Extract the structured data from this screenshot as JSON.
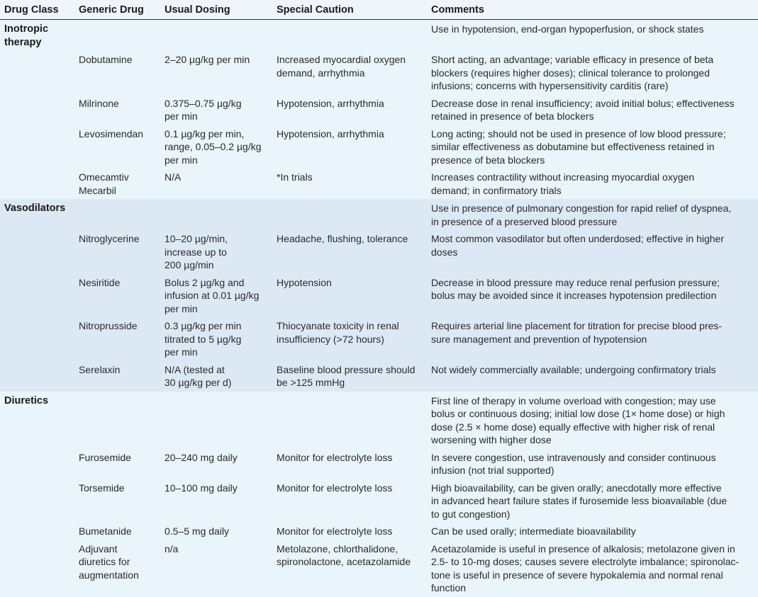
{
  "headers": [
    "Drug Class",
    "Generic Drug",
    "Usual Dosing",
    "Special Caution",
    "Comments"
  ],
  "sections": [
    {
      "class": "Inotropic\ntherapy",
      "comment": "Use in hypotension, end-organ hypoperfusion, or shock states",
      "rows": [
        [
          "Dobutamine",
          "2–20 µg/kg per min",
          "Increased myocardial oxygen\ndemand, arrhythmia",
          "Short acting, an advantage; variable efficacy in presence of beta\nblockers (requires higher doses); clinical tolerance to prolonged\ninfusions; concerns with hypersensitivity carditis (rare)"
        ],
        [
          "Milrinone",
          "0.375–0.75 µg/kg\nper min",
          "Hypotension, arrhythmia",
          "Decrease dose in renal insufficiency; avoid initial bolus; effectiveness\nretained in presence of beta blockers"
        ],
        [
          "Levosimendan",
          "0.1 µg/kg per min,\nrange, 0.05–0.2 µg/kg\nper min",
          "Hypotension, arrhythmia",
          "Long acting; should not be used in presence of low blood pressure;\nsimilar effectiveness as dobutamine but effectiveness retained in\npresence of beta blockers"
        ],
        [
          "Omecamtiv\nMecarbil",
          "N/A",
          "*In trials",
          "Increases contractility without increasing myocardial oxygen\ndemand; in confirmatory trials"
        ]
      ]
    },
    {
      "class": "Vasodilators",
      "comment": "Use in presence of pulmonary congestion for rapid relief of dyspnea,\nin presence of a preserved blood pressure",
      "rows": [
        [
          "Nitroglycerine",
          "10–20 µg/min,\nincrease up to\n200 µg/min",
          "Headache, flushing, tolerance",
          "Most common vasodilator but often underdosed; effective in higher\ndoses"
        ],
        [
          "Nesiritide",
          "Bolus 2 µg/kg and\ninfusion at 0.01 µg/kg\nper min",
          "Hypotension",
          "Decrease in blood pressure may reduce renal perfusion pressure;\nbolus may be avoided since it increases hypotension predilection"
        ],
        [
          "Nitroprusside",
          "0.3 µg/kg per min\ntitrated to 5 µg/kg\nper min",
          "Thiocyanate toxicity in renal\ninsufficiency (>72 hours)",
          "Requires arterial line placement for titration for precise blood pres-\nsure management and prevention of hypotension"
        ],
        [
          "Serelaxin",
          "N/A (tested at\n30 µg/kg per d)",
          "Baseline blood pressure should\nbe >125 mmHg",
          "Not widely commercially available; undergoing confirmatory trials"
        ]
      ]
    },
    {
      "class": "Diuretics",
      "comment": "First line of therapy in volume overload with congestion; may use\nbolus or continuous dosing; initial low dose (1× home dose) or high\ndose (2.5 × home dose) equally effective with higher risk of renal\nworsening with higher dose",
      "rows": [
        [
          "Furosemide",
          "20–240 mg daily",
          "Monitor for electrolyte loss",
          "In severe congestion, use intravenously and consider continuous\ninfusion (not trial supported)"
        ],
        [
          "Torsemide",
          "10–100 mg daily",
          "Monitor for electrolyte loss",
          "High bioavailability, can be given orally; anecdotally more effective\nin advanced heart failure states if furosemide less bioavailable (due\nto gut congestion)"
        ],
        [
          "Bumetanide",
          "0.5–5 mg daily",
          "Monitor for electrolyte loss",
          "Can be used orally; intermediate bioavailability"
        ],
        [
          "Adjuvant\ndiuretics for\naugmentation",
          "n/a",
          "Metolazone, chlorthalidone,\nspironolactone, acetazolamide",
          "Acetazolamide is useful in presence of alkalosis; metolazone given in\n2.5- to 10-mg doses; causes severe electrolyte imbalance; spironolac-\ntone is useful in presence of severe hypokalemia and normal renal\nfunction"
        ]
      ]
    }
  ],
  "colors": {
    "section_light": "#eaf4fb",
    "section_dark": "#dce9f4",
    "header_rule": "#333333"
  }
}
